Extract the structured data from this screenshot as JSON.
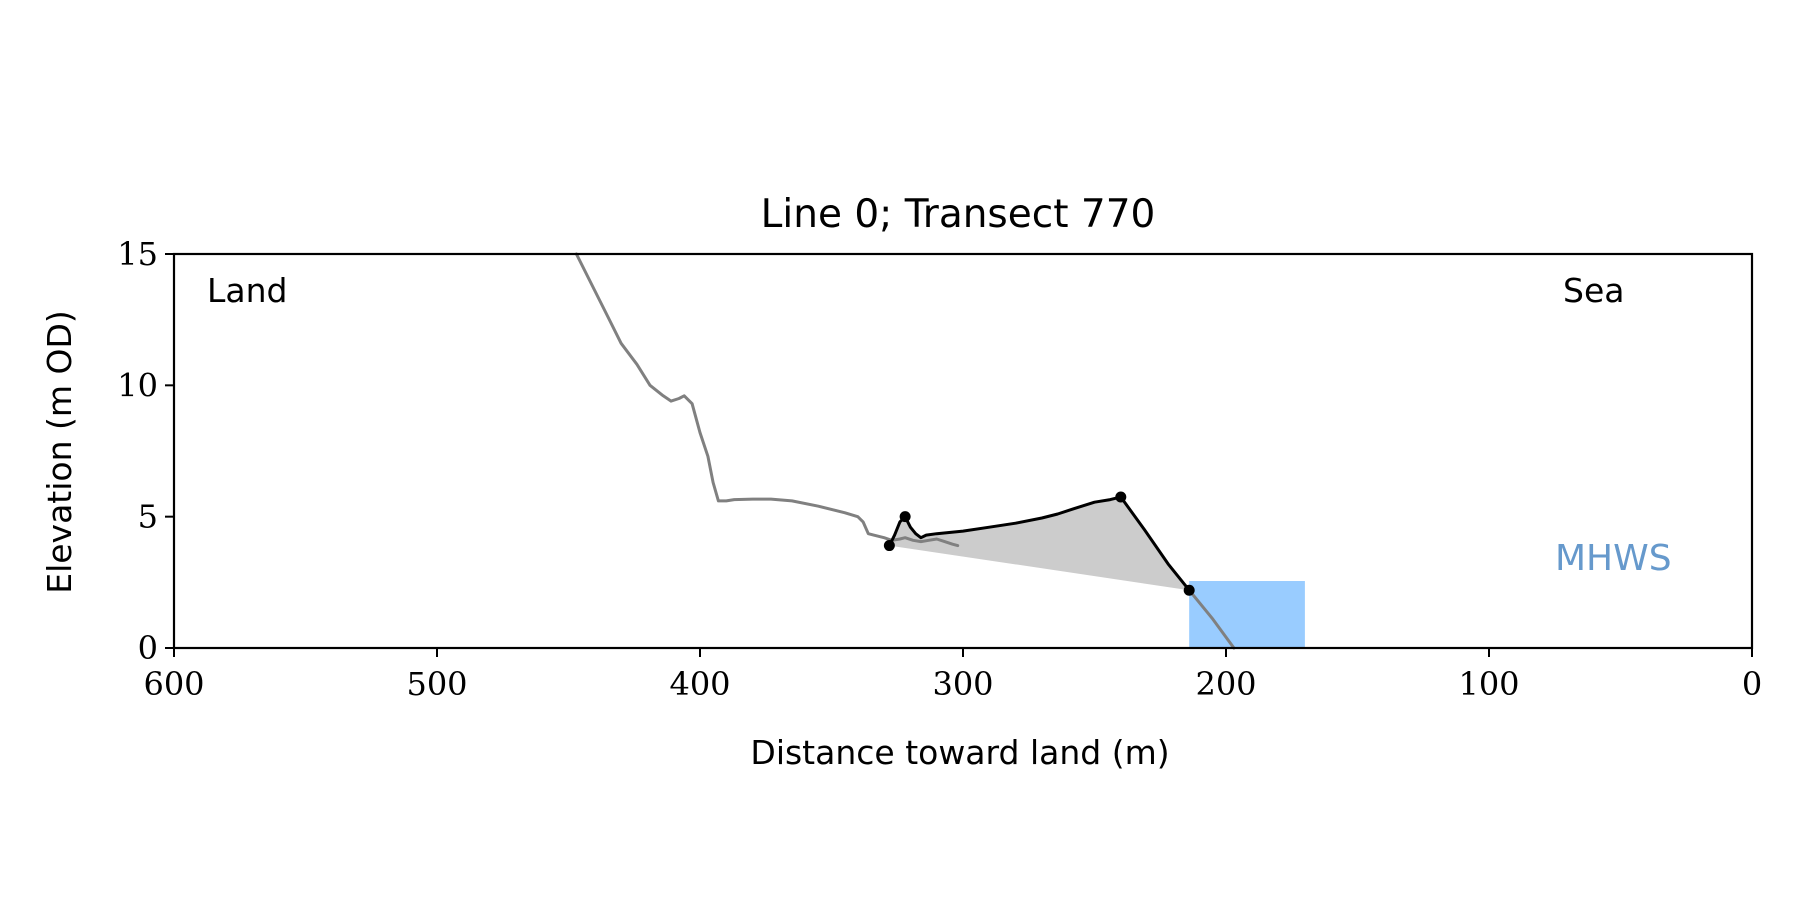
{
  "chart_data": {
    "type": "line",
    "title": "Line 0; Transect 770",
    "xlabel": "Distance toward land (m)",
    "ylabel": "Elevation (m OD)",
    "xlim": [
      600,
      0
    ],
    "ylim": [
      0,
      15
    ],
    "x_ticks": [
      600,
      500,
      400,
      300,
      200,
      100,
      0
    ],
    "y_ticks": [
      0,
      5,
      10,
      15
    ],
    "x_tick_labels": [
      "600",
      "500",
      "400",
      "300",
      "200",
      "100",
      "0"
    ],
    "y_tick_labels": [
      "0",
      "5",
      "10",
      "15"
    ],
    "annotations": {
      "left": "Land",
      "right": "Sea",
      "mhws": "MHWS"
    },
    "grid": false,
    "colors": {
      "profile": "#808080",
      "feature": "#000000",
      "fill": "#cccccc",
      "mhws_fill": "#99ccff",
      "mhws_text": "#6699cc"
    },
    "series": [
      {
        "role": "profile",
        "points": [
          [
            447,
            15.0
          ],
          [
            441,
            13.8
          ],
          [
            435,
            12.6
          ],
          [
            430,
            11.6
          ],
          [
            424,
            10.8
          ],
          [
            419,
            10.0
          ],
          [
            414,
            9.6
          ],
          [
            411,
            9.4
          ],
          [
            408,
            9.5
          ],
          [
            406,
            9.6
          ],
          [
            403,
            9.3
          ],
          [
            400,
            8.2
          ],
          [
            397,
            7.3
          ],
          [
            395,
            6.3
          ],
          [
            393,
            5.6
          ],
          [
            390,
            5.6
          ],
          [
            387,
            5.65
          ],
          [
            380,
            5.67
          ],
          [
            373,
            5.67
          ],
          [
            365,
            5.6
          ],
          [
            355,
            5.4
          ],
          [
            345,
            5.15
          ],
          [
            340,
            5.0
          ],
          [
            338,
            4.8
          ],
          [
            336,
            4.35
          ],
          [
            334,
            4.3
          ],
          [
            330,
            4.2
          ],
          [
            327,
            4.1
          ],
          [
            324,
            4.15
          ],
          [
            322,
            4.2
          ],
          [
            319,
            4.1
          ],
          [
            316,
            4.05
          ],
          [
            313,
            4.1
          ],
          [
            310,
            4.15
          ],
          [
            307,
            4.05
          ],
          [
            304,
            3.95
          ],
          [
            302,
            3.9
          ]
        ]
      },
      {
        "role": "profile-lower",
        "points": [
          [
            214,
            2.2
          ],
          [
            205,
            1.1
          ],
          [
            197,
            0.0
          ]
        ]
      },
      {
        "role": "feature",
        "points": [
          [
            328,
            3.9
          ],
          [
            326,
            4.3
          ],
          [
            324,
            4.8
          ],
          [
            322,
            5.0
          ],
          [
            320,
            4.6
          ],
          [
            318,
            4.35
          ],
          [
            316,
            4.2
          ],
          [
            314,
            4.3
          ],
          [
            310,
            4.35
          ],
          [
            300,
            4.45
          ],
          [
            290,
            4.6
          ],
          [
            280,
            4.75
          ],
          [
            270,
            4.95
          ],
          [
            264,
            5.1
          ],
          [
            258,
            5.3
          ],
          [
            250,
            5.55
          ],
          [
            244,
            5.65
          ],
          [
            240,
            5.75
          ],
          [
            231,
            4.5
          ],
          [
            222,
            3.2
          ],
          [
            214,
            2.2
          ]
        ],
        "markers": [
          [
            328,
            3.9
          ],
          [
            322,
            5.0
          ],
          [
            240,
            5.75
          ],
          [
            214,
            2.2
          ]
        ]
      }
    ],
    "mhws_band": {
      "x_from": 214,
      "x_to": 170,
      "y": 2.55
    }
  }
}
